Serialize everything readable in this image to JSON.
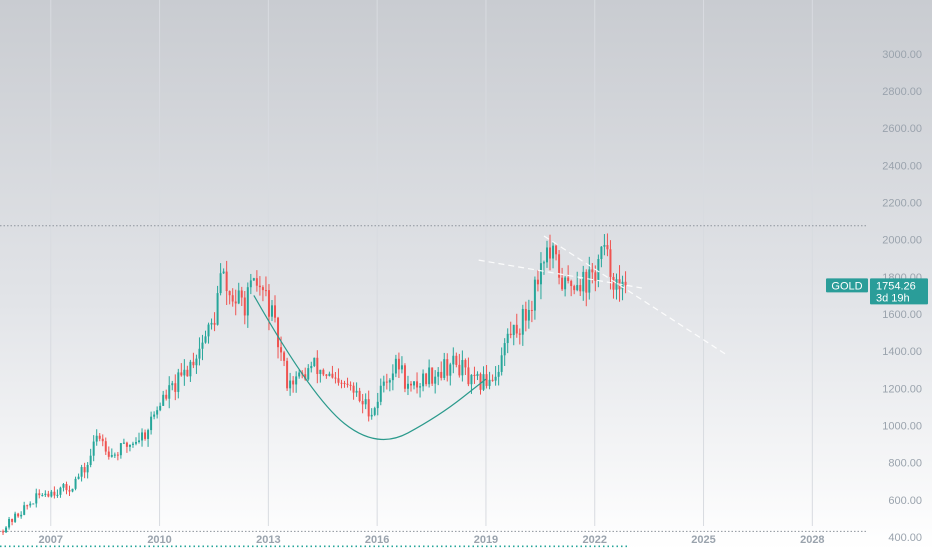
{
  "chart_data": {
    "type": "candlestick",
    "symbol": "GOLD",
    "price_label": "1754.26",
    "countdown_label": "3d 19h",
    "last_price": 1754.26,
    "y_ticks": [
      "400.00",
      "600.00",
      "800.00",
      "1000.00",
      "1200.00",
      "1400.00",
      "1600.00",
      "1800.00",
      "2000.00",
      "2200.00",
      "2400.00",
      "2600.00",
      "2800.00",
      "3000.00"
    ],
    "y_tick_values": [
      400,
      600,
      800,
      1000,
      1200,
      1400,
      1600,
      1800,
      2000,
      2200,
      2400,
      2600,
      2800,
      3000
    ],
    "x_ticks": [
      "2007",
      "2010",
      "2013",
      "2016",
      "2019",
      "2022",
      "2025",
      "2028"
    ],
    "x_tick_years": [
      2007,
      2010,
      2013,
      2016,
      2019,
      2022,
      2025,
      2028
    ],
    "x_range": [
      2005.6,
      2031.3
    ],
    "y_range": [
      330,
      3290
    ],
    "resistance_level": 2075,
    "support_level": 430,
    "bottom_dotted_level": 350,
    "anchors": [
      [
        2005.6,
        430
      ],
      [
        2006.3,
        560
      ],
      [
        2006.8,
        640
      ],
      [
        2007.5,
        660
      ],
      [
        2008.0,
        780
      ],
      [
        2008.3,
        960
      ],
      [
        2008.7,
        840
      ],
      [
        2009.0,
        880
      ],
      [
        2009.6,
        960
      ],
      [
        2010.0,
        1120
      ],
      [
        2010.6,
        1250
      ],
      [
        2011.0,
        1390
      ],
      [
        2011.5,
        1560
      ],
      [
        2011.7,
        1820
      ],
      [
        2011.9,
        1700
      ],
      [
        2012.3,
        1650
      ],
      [
        2012.7,
        1760
      ],
      [
        2013.0,
        1660
      ],
      [
        2013.3,
        1420
      ],
      [
        2013.5,
        1250
      ],
      [
        2013.9,
        1250
      ],
      [
        2014.2,
        1320
      ],
      [
        2014.6,
        1280
      ],
      [
        2014.9,
        1200
      ],
      [
        2015.2,
        1210
      ],
      [
        2015.6,
        1120
      ],
      [
        2015.9,
        1080
      ],
      [
        2016.2,
        1250
      ],
      [
        2016.6,
        1330
      ],
      [
        2016.9,
        1180
      ],
      [
        2017.3,
        1260
      ],
      [
        2017.7,
        1300
      ],
      [
        2018.0,
        1330
      ],
      [
        2018.3,
        1320
      ],
      [
        2018.6,
        1220
      ],
      [
        2018.9,
        1230
      ],
      [
        2019.3,
        1290
      ],
      [
        2019.6,
        1480
      ],
      [
        2020.0,
        1560
      ],
      [
        2020.2,
        1640
      ],
      [
        2020.6,
        1930
      ],
      [
        2020.9,
        1880
      ],
      [
        2021.2,
        1730
      ],
      [
        2021.5,
        1800
      ],
      [
        2021.8,
        1770
      ],
      [
        2022.0,
        1820
      ],
      [
        2022.2,
        1940
      ],
      [
        2022.5,
        1820
      ],
      [
        2022.7,
        1680
      ],
      [
        2022.85,
        1754.26
      ]
    ],
    "curve_points": [
      [
        2012.6,
        1700
      ],
      [
        2014.2,
        1150
      ],
      [
        2016.0,
        870
      ],
      [
        2017.7,
        1050
      ],
      [
        2019.0,
        1250
      ]
    ],
    "channel_upper": [
      [
        2018.8,
        1890
      ],
      [
        2023.3,
        1740
      ]
    ],
    "channel_lower": [
      [
        2020.6,
        2020
      ],
      [
        2025.6,
        1385
      ]
    ],
    "title": "",
    "xlabel": "",
    "ylabel": "",
    "grid": true
  },
  "colors": {
    "up": "#26a69a",
    "down": "#ef5350",
    "curve": "#2b9a8c",
    "label_bg": "#2a9d99",
    "axis_text": "#9aa3ad",
    "grid": "#d8dbe0",
    "bg_top": "#c9ccd1",
    "bg_bottom": "#ffffff"
  }
}
